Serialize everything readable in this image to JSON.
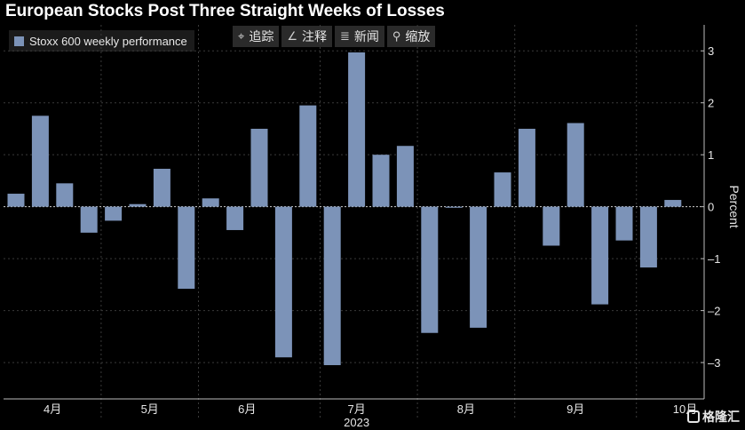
{
  "title": "European Stocks Post Three Straight Weeks of Losses",
  "legend": {
    "label": "Stoxx 600 weekly performance",
    "color": "#7c93b8"
  },
  "toolbar": [
    {
      "icon": "crosshair-icon",
      "glyph": "⌖",
      "label": "追踪"
    },
    {
      "icon": "pen-icon",
      "glyph": "∠",
      "label": "注释"
    },
    {
      "icon": "news-icon",
      "glyph": "≣",
      "label": "新闻"
    },
    {
      "icon": "zoom-icon",
      "glyph": "⚲",
      "label": "缩放"
    }
  ],
  "watermark": "格隆汇",
  "chart_data": {
    "type": "bar",
    "title": "European Stocks Post Three Straight Weeks of Losses",
    "ylabel": "Percent",
    "xlabel": "2023",
    "ylim": [
      -3.7,
      3.5
    ],
    "yticks": [
      3,
      2,
      1,
      0,
      -1,
      -2,
      -3
    ],
    "month_labels": [
      "4月",
      "5月",
      "6月",
      "7月",
      "8月",
      "9月",
      "10月"
    ],
    "month_label_weeks": [
      1.5,
      5.5,
      9.5,
      14,
      18.5,
      23,
      27.5
    ],
    "month_separator_weeks": [
      3.5,
      7.5,
      12.5,
      16.5,
      20.5,
      25.5
    ],
    "year_label": "2023",
    "series": [
      {
        "name": "Stoxx 600 weekly performance",
        "color": "#7c93b8",
        "values": [
          0.25,
          1.75,
          0.45,
          -0.5,
          -0.27,
          0.05,
          0.73,
          -1.58,
          0.16,
          -0.45,
          1.5,
          -2.9,
          1.95,
          -3.05,
          2.97,
          1.0,
          1.17,
          -2.43,
          -0.02,
          -2.33,
          0.66,
          1.5,
          -0.75,
          1.61,
          -1.88,
          -0.65,
          -1.17,
          0.13
        ]
      }
    ]
  }
}
